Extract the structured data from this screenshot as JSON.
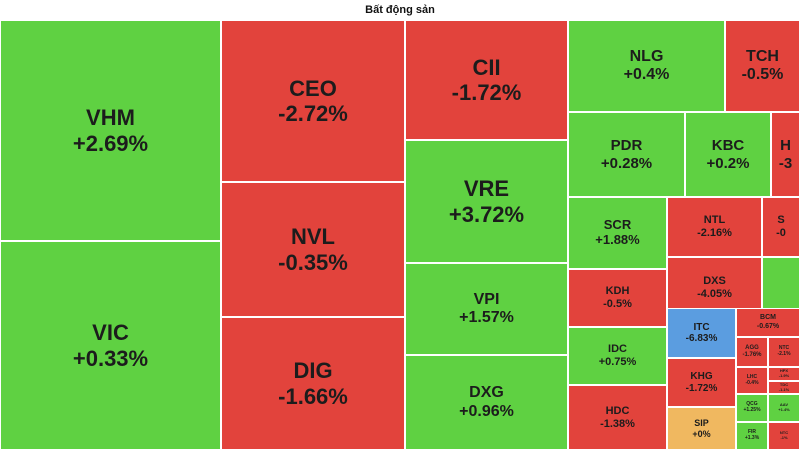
{
  "title": "Bất động sản",
  "colors": {
    "up": "#5fd142",
    "down": "#e2433c",
    "flat": "#f0b860",
    "floor": "#5b9de0"
  },
  "chart_data": {
    "type": "treemap",
    "title": "Bất động sản",
    "items": [
      {
        "ticker": "VHM",
        "change": "+2.69%",
        "value": 2.69
      },
      {
        "ticker": "VIC",
        "change": "+0.33%",
        "value": 0.33
      },
      {
        "ticker": "CEO",
        "change": "-2.72%",
        "value": -2.72
      },
      {
        "ticker": "NVL",
        "change": "-0.35%",
        "value": -0.35
      },
      {
        "ticker": "DIG",
        "change": "-1.66%",
        "value": -1.66
      },
      {
        "ticker": "CII",
        "change": "-1.72%",
        "value": -1.72
      },
      {
        "ticker": "VRE",
        "change": "+3.72%",
        "value": 3.72
      },
      {
        "ticker": "VPI",
        "change": "+1.57%",
        "value": 1.57
      },
      {
        "ticker": "DXG",
        "change": "+0.96%",
        "value": 0.96
      },
      {
        "ticker": "NLG",
        "change": "+0.4%",
        "value": 0.4
      },
      {
        "ticker": "TCH",
        "change": "-0.5%",
        "value": -0.5
      },
      {
        "ticker": "PDR",
        "change": "+0.28%",
        "value": 0.28
      },
      {
        "ticker": "KBC",
        "change": "+0.2%",
        "value": 0.2
      },
      {
        "ticker": "H",
        "change": "-3",
        "value": -3
      },
      {
        "ticker": "SCR",
        "change": "+1.88%",
        "value": 1.88
      },
      {
        "ticker": "NTL",
        "change": "-2.16%",
        "value": -2.16
      },
      {
        "ticker": "S",
        "change": "-0",
        "value": -0.1
      },
      {
        "ticker": "KDH",
        "change": "-0.5%",
        "value": -0.5
      },
      {
        "ticker": "DXS",
        "change": "-4.05%",
        "value": -4.05
      },
      {
        "ticker": "",
        "change": "",
        "value": 0.1
      },
      {
        "ticker": "IDC",
        "change": "+0.75%",
        "value": 0.75
      },
      {
        "ticker": "ITC",
        "change": "-6.83%",
        "value": -6.83,
        "floor": true
      },
      {
        "ticker": "BCM",
        "change": "-0.67%",
        "value": -0.67
      },
      {
        "ticker": "AGG",
        "change": "-1.76%",
        "value": -1.76
      },
      {
        "ticker": "NTC",
        "change": "-2.1%",
        "value": -2.1
      },
      {
        "ticker": "KHG",
        "change": "-1.72%",
        "value": -1.72
      },
      {
        "ticker": "LHC",
        "change": "-0.4%",
        "value": -0.4
      },
      {
        "ticker": "HPX",
        "change": "-1.9%",
        "value": -1.9
      },
      {
        "ticker": "TDC",
        "change": "-1.1%",
        "value": -1.1
      },
      {
        "ticker": "HDC",
        "change": "-1.38%",
        "value": -1.38
      },
      {
        "ticker": "SIP",
        "change": "+0%",
        "value": 0
      },
      {
        "ticker": "QCG",
        "change": "+1.25%",
        "value": 1.25
      },
      {
        "ticker": "FIR",
        "change": "+1.3%",
        "value": 1.3
      },
      {
        "ticker": "AAV",
        "change": "+1.4%",
        "value": 1.4
      },
      {
        "ticker": "NTC",
        "change": "-1%",
        "value": -1
      }
    ]
  }
}
